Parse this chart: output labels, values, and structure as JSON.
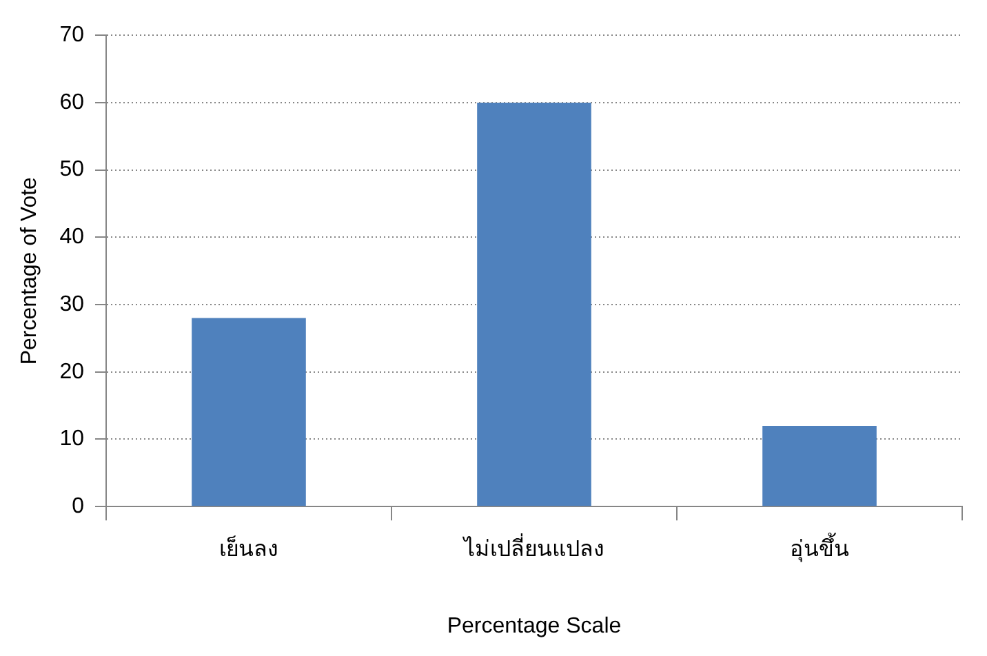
{
  "chart_data": {
    "type": "bar",
    "xlabel": "Percentage Scale",
    "ylabel": "Percentage of Vote",
    "categories": [
      "เย็นลง",
      "ไม่เปลี่ยนแปลง",
      "อุ่นขึ้น"
    ],
    "values": [
      28,
      60,
      12
    ],
    "color": "#4f81bd",
    "ylim": [
      0,
      70
    ],
    "yticks": [
      0,
      10,
      20,
      30,
      40,
      50,
      60,
      70
    ],
    "grid": "y"
  }
}
